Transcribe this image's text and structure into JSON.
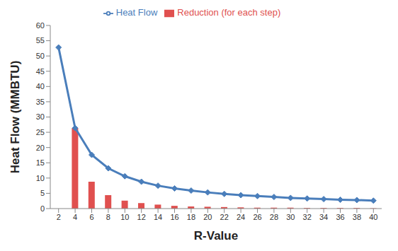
{
  "chart_data": {
    "type": "combo",
    "xlabel": "R-Value",
    "ylabel": "Heat Flow (MMBTU)",
    "categories": [
      "2",
      "4",
      "6",
      "8",
      "10",
      "12",
      "14",
      "16",
      "18",
      "20",
      "22",
      "24",
      "26",
      "28",
      "30",
      "32",
      "34",
      "36",
      "38",
      "40"
    ],
    "series": [
      {
        "name": "Reduction (for each step)",
        "type": "bar",
        "color": "#e0504f",
        "values": [
          null,
          26.4,
          8.8,
          4.4,
          2.6,
          1.8,
          1.3,
          0.9,
          0.7,
          0.6,
          0.5,
          0.4,
          0.3,
          0.3,
          0.3,
          0.2,
          0.2,
          0.2,
          0.2,
          0.1
        ]
      },
      {
        "name": "Heat Flow",
        "type": "line",
        "color": "#4a7ebb",
        "marker": "diamond",
        "values": [
          52.8,
          26.4,
          17.6,
          13.2,
          10.6,
          8.8,
          7.5,
          6.6,
          5.9,
          5.3,
          4.8,
          4.4,
          4.1,
          3.8,
          3.5,
          3.3,
          3.1,
          2.9,
          2.8,
          2.6
        ]
      }
    ],
    "ylim": [
      0,
      60
    ],
    "yticks": [
      0,
      5,
      10,
      15,
      20,
      25,
      30,
      35,
      40,
      45,
      50,
      55,
      60
    ],
    "legend": "top",
    "grid": false
  }
}
